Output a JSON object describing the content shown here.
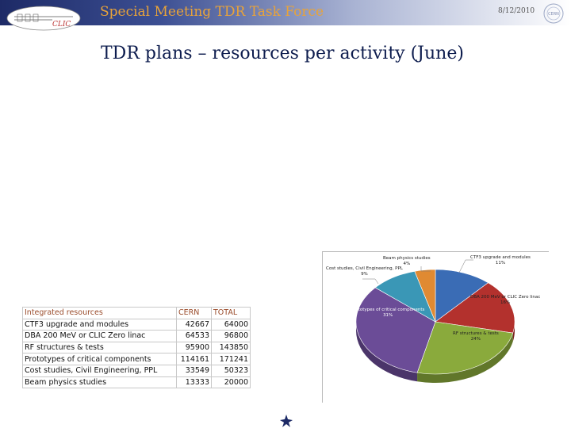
{
  "header": {
    "title": "Special Meeting TDR Task Force",
    "date": "8/12/2010",
    "logo_left_text": "CLIC",
    "logo_right_text": "CERN"
  },
  "slide": {
    "title": "TDR plans – resources per activity (June)"
  },
  "table": {
    "headers": {
      "name": "Integrated resources",
      "cern": "CERN",
      "total": "TOTAL"
    },
    "rows": [
      {
        "name": "CTF3 upgrade and modules",
        "cern": "42667",
        "total": "64000"
      },
      {
        "name": "DBA 200 MeV or CLIC Zero  linac",
        "cern": "64533",
        "total": "96800"
      },
      {
        "name": "RF structures  & tests",
        "cern": "95900",
        "total": "143850"
      },
      {
        "name": "Prototypes of critical components",
        "cern": "114161",
        "total": "171241"
      },
      {
        "name": "Cost studies, Civil Engineering, PPL",
        "cern": "33549",
        "total": "50323"
      },
      {
        "name": "Beam physics studies",
        "cern": "13333",
        "total": "20000"
      }
    ]
  },
  "chart_data": {
    "type": "pie",
    "title": "",
    "series": [
      {
        "label": "CTF3 upgrade and modules",
        "value": 11,
        "value_label": "11%",
        "color": "#3a6cb5"
      },
      {
        "label": "DBA 200 MeV or CLIC Zero  linac",
        "value": 16,
        "value_label": "16%",
        "color": "#b3312d"
      },
      {
        "label": "RF structures & tests",
        "value": 24,
        "value_label": "24%",
        "color": "#8aaa3c"
      },
      {
        "label": "Prototypes of critical components",
        "value": 31,
        "value_label": "31%",
        "color": "#6b4c97"
      },
      {
        "label": "Cost studies, Civil Engineering, PPL",
        "value": 9,
        "value_label": "9%",
        "color": "#3a97b6"
      },
      {
        "label": "Beam physics studies",
        "value": 4,
        "value_label": "4%",
        "color": "#e08a32"
      }
    ],
    "style": "3d-tilted"
  }
}
